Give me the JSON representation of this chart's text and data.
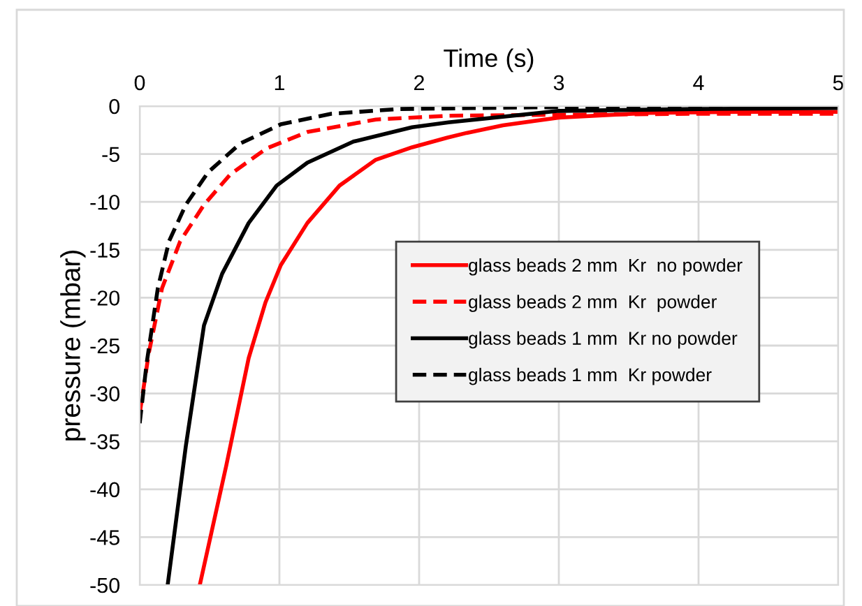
{
  "chart_data": {
    "type": "line",
    "xlabel": "Time (s)",
    "ylabel": "pressure (mbar)",
    "xlim": [
      0,
      5
    ],
    "xticks": [
      0,
      1,
      2,
      3,
      4,
      5
    ],
    "ylim": [
      -50,
      0
    ],
    "yticks": [
      0,
      -5,
      -10,
      -15,
      -20,
      -25,
      -30,
      -35,
      -40,
      -45,
      -50
    ],
    "grid": true,
    "legend": "right",
    "marker": "none",
    "series": [
      {
        "name": "glass beads 2 mm  Kr  no powder",
        "color": "#ff0000",
        "line_style": "solid",
        "x": [
          0.43,
          0.62,
          0.78,
          0.9,
          1.01,
          1.2,
          1.43,
          1.69,
          1.95,
          2.2,
          2.34,
          2.6,
          3.0,
          3.65,
          4.3,
          5.0
        ],
        "values": [
          -50,
          -37.5,
          -26.3,
          -20.5,
          -16.6,
          -12.2,
          -8.3,
          -5.6,
          -4.3,
          -3.3,
          -2.8,
          -2.0,
          -1.2,
          -0.7,
          -0.6,
          -0.6
        ]
      },
      {
        "name": "glass beads 2 mm  Kr  powder",
        "color": "#ff0000",
        "line_style": "dashed",
        "x": [
          0,
          0.065,
          0.16,
          0.29,
          0.46,
          0.65,
          0.91,
          1.2,
          1.69,
          2.21,
          3.0,
          4.0,
          5.0
        ],
        "values": [
          -32.1,
          -25.8,
          -19,
          -14.1,
          -10.3,
          -7.1,
          -4.4,
          -2.7,
          -1.4,
          -1.0,
          -0.9,
          -0.8,
          -0.8
        ]
      },
      {
        "name": "glass beads 1 mm  Kr no powder",
        "color": "#000000",
        "line_style": "solid",
        "x": [
          0.2,
          0.33,
          0.46,
          0.59,
          0.78,
          0.98,
          1.2,
          1.53,
          1.95,
          2.21,
          3.0,
          4.0,
          5.0
        ],
        "values": [
          -50,
          -35.5,
          -22.9,
          -17.5,
          -12.2,
          -8.3,
          -5.9,
          -3.7,
          -2.2,
          -1.7,
          -0.5,
          -0.3,
          -0.2
        ]
      },
      {
        "name": "glass beads 1 mm  Kr powder",
        "color": "#000000",
        "line_style": "dashed",
        "x": [
          0,
          0.05,
          0.13,
          0.21,
          0.33,
          0.49,
          0.72,
          1.01,
          1.37,
          1.86,
          3.0,
          4.0,
          5.0
        ],
        "values": [
          -33.1,
          -26.8,
          -19,
          -14.1,
          -10.3,
          -6.9,
          -3.9,
          -1.9,
          -0.8,
          -0.3,
          -0.1,
          -0.1,
          -0.1
        ]
      }
    ]
  }
}
